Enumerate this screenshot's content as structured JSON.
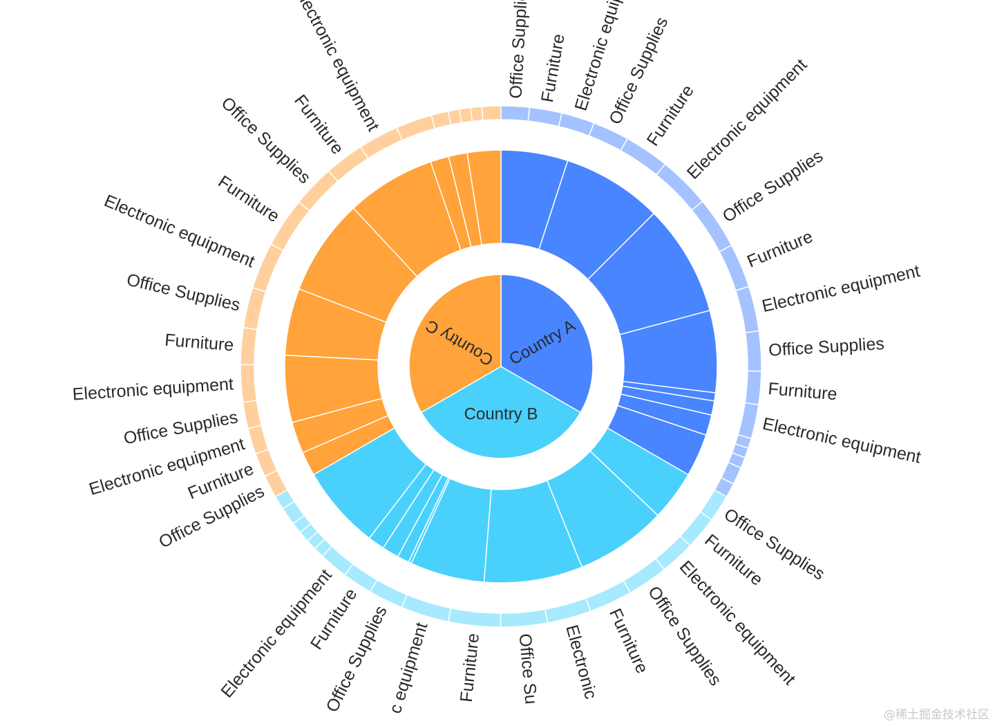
{
  "chart_data": {
    "type": "sunburst",
    "colors": {
      "Country A": {
        "root": "#4885FF",
        "mid": "#4885FF",
        "leaf": "#A3C2FF"
      },
      "Country B": {
        "root": "#49D1FC",
        "mid": "#49D1FC",
        "leaf": "#A7E9FE"
      },
      "Country C": {
        "root": "#FFA33A",
        "mid": "#FFA33A",
        "leaf": "#FFD09E"
      }
    },
    "root_values": [
      {
        "name": "Country A",
        "value": 120
      },
      {
        "name": "Country B",
        "value": 120
      },
      {
        "name": "Country C",
        "value": 120
      }
    ],
    "mid_values": [
      {
        "parent": "Country A",
        "values": [
          18,
          27,
          30,
          22,
          2.2,
          3.8,
          5.5,
          11.5
        ]
      },
      {
        "parent": "Country B",
        "values": [
          13.5,
          24.5,
          26.5,
          20,
          0.8,
          3.2,
          4.5,
          4.5,
          22.5
        ]
      },
      {
        "parent": "Country C",
        "values": [
          6.5,
          8.5,
          18,
          18,
          26,
          24,
          5,
          5,
          9
        ]
      }
    ],
    "leaves": [
      {
        "parent": "Country A",
        "name": "Office Supplies",
        "value": 6.3
      },
      {
        "parent": "Country A",
        "name": "Furniture",
        "value": 7.2
      },
      {
        "parent": "Country A",
        "name": "Electronic equipment",
        "value": 7.4
      },
      {
        "parent": "Country A",
        "name": "Office Supplies",
        "value": 8.1
      },
      {
        "parent": "Country A",
        "name": "Furniture",
        "value": 10
      },
      {
        "parent": "Country A",
        "name": "Electronic equipment",
        "value": 11.6
      },
      {
        "parent": "Country A",
        "name": "Office Supplies",
        "value": 11.6
      },
      {
        "parent": "Country A",
        "name": "Furniture",
        "value": 9.8
      },
      {
        "parent": "Country A",
        "name": "Electronic equipment",
        "value": 10
      },
      {
        "parent": "Country A",
        "name": "Office Supplies",
        "value": 8.9
      },
      {
        "parent": "Country A",
        "name": "Furniture",
        "value": 7.4
      },
      {
        "parent": "Country A",
        "name": "Electronic equipment",
        "value": 7.6
      },
      {
        "parent": "Country A",
        "name": "",
        "value": 2.2
      },
      {
        "parent": "Country A",
        "name": "",
        "value": 2.2
      },
      {
        "parent": "Country A",
        "name": "",
        "value": 2.4
      },
      {
        "parent": "Country A",
        "name": "",
        "value": 3.9
      },
      {
        "parent": "Country A",
        "name": "",
        "value": 3.2
      },
      {
        "parent": "Country B",
        "name": "Office Supplies",
        "value": 6.4
      },
      {
        "parent": "Country B",
        "name": "Furniture",
        "value": 7.8
      },
      {
        "parent": "Country B",
        "name": "Electronic equipment",
        "value": 8.2
      },
      {
        "parent": "Country B",
        "name": "Office Supplies",
        "value": 9.6
      },
      {
        "parent": "Country B",
        "name": "Furniture",
        "value": 10.2
      },
      {
        "parent": "Country B",
        "name": "Electronic",
        "value": 10.4
      },
      {
        "parent": "Country B",
        "name": "Office Su",
        "value": 11
      },
      {
        "parent": "Country B",
        "name": "Furniture",
        "value": 12.3
      },
      {
        "parent": "Country B",
        "name": "c equipment",
        "value": 11.3
      },
      {
        "parent": "Country B",
        "name": "Office Supplies",
        "value": 8.2
      },
      {
        "parent": "Country B",
        "name": "Furniture",
        "value": 7.1
      },
      {
        "parent": "Country B",
        "name": "Electronic equipment",
        "value": 6.8
      },
      {
        "parent": "Country B",
        "name": "",
        "value": 2.5
      },
      {
        "parent": "Country B",
        "name": "",
        "value": 2.5
      },
      {
        "parent": "Country B",
        "name": "",
        "value": 2.6
      },
      {
        "parent": "Country B",
        "name": "",
        "value": 2.6
      },
      {
        "parent": "Country B",
        "name": "",
        "value": 4.2
      },
      {
        "parent": "Country B",
        "name": "",
        "value": 3.3
      },
      {
        "parent": "Country C",
        "name": "Office Supplies",
        "value": 5.1
      },
      {
        "parent": "Country C",
        "name": "Furniture",
        "value": 5.3
      },
      {
        "parent": "Country C",
        "name": "Electronic equipment",
        "value": 5.8
      },
      {
        "parent": "Country C",
        "name": "Office Supplies",
        "value": 5.9
      },
      {
        "parent": "Country C",
        "name": "Electronic equipment",
        "value": 8.3
      },
      {
        "parent": "Country C",
        "name": "Furniture",
        "value": 8.2
      },
      {
        "parent": "Country C",
        "name": "Office Supplies",
        "value": 9
      },
      {
        "parent": "Country C",
        "name": "Electronic equipment",
        "value": 10.4
      },
      {
        "parent": "Country C",
        "name": "Furniture",
        "value": 11.1
      },
      {
        "parent": "Country C",
        "name": "Office Supplies",
        "value": 9.5
      },
      {
        "parent": "Country C",
        "name": "Furniture",
        "value": 8.8
      },
      {
        "parent": "Country C",
        "name": "Electronic equipment",
        "value": 9
      },
      {
        "parent": "Country C",
        "name": "",
        "value": 8.1
      },
      {
        "parent": "Country C",
        "name": "",
        "value": 3.8
      },
      {
        "parent": "Country C",
        "name": "",
        "value": 2.5
      },
      {
        "parent": "Country C",
        "name": "",
        "value": 2.5
      },
      {
        "parent": "Country C",
        "name": "",
        "value": 2.5
      },
      {
        "parent": "Country C",
        "name": "",
        "value": 4.2
      }
    ]
  },
  "watermark": "@稀土掘金技术社区"
}
